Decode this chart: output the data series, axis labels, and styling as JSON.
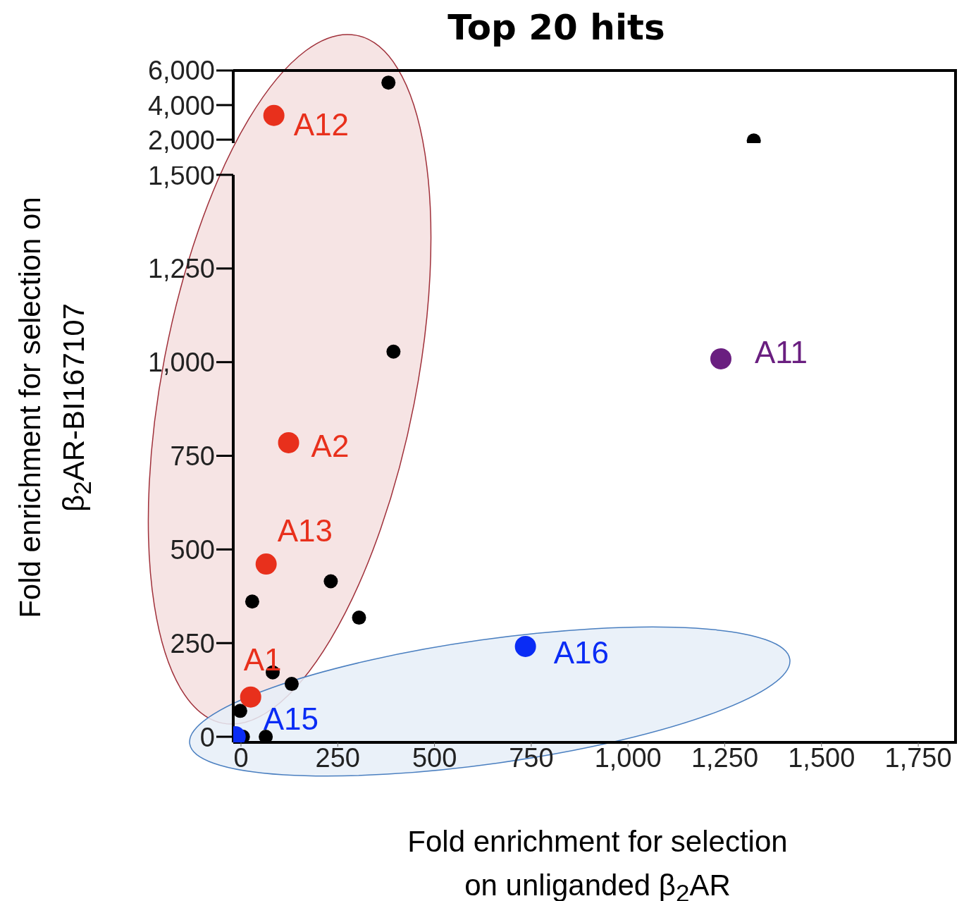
{
  "chart_data": [
    {
      "type": "scatter",
      "title": "Top 20 hits",
      "xlim": [
        -20,
        1850
      ],
      "ylim": [
        1800,
        6000
      ],
      "yticks": [
        {
          "value": 2000,
          "label": "2,000"
        },
        {
          "value": 4000,
          "label": "4,000"
        },
        {
          "value": 6000,
          "label": "6,000"
        }
      ],
      "tick_labels": "y",
      "marker": "circle",
      "grid": false,
      "legend": false,
      "series": [
        {
          "color": "#000000",
          "x": [
            381,
            1325
          ],
          "values": [
            5300,
            1950
          ]
        },
        {
          "color": "#e8301c",
          "x": [
            85
          ],
          "values": [
            3400
          ]
        }
      ],
      "annotations": [
        {
          "text": "A12",
          "x": 85,
          "y": 3400
        }
      ]
    },
    {
      "type": "scatter",
      "xlabel": "Fold enrichment for selection on unliganded β$_{2}$AR",
      "ylabel": "Fold enrichment for selection on β$_{2}$AR-BI167107",
      "xlim": [
        -20,
        1850
      ],
      "ylim": [
        -15,
        1500
      ],
      "xticks": [
        0,
        250,
        500,
        750,
        {
          "value": 1000,
          "label": "1,000"
        },
        {
          "value": 1250,
          "label": "1,250"
        },
        {
          "value": 1500,
          "label": "1,500"
        },
        {
          "value": 1750,
          "label": "1,750"
        }
      ],
      "yticks": [
        0,
        250,
        500,
        750,
        {
          "value": 1000,
          "label": "1,000"
        },
        {
          "value": 1250,
          "label": "1,250"
        },
        {
          "value": 1500,
          "label": "1,500"
        }
      ],
      "marker": "circle",
      "grid": false,
      "legend": false,
      "series": [
        {
          "color": "#000000",
          "x": [
            394,
            232,
            305,
            29,
            82,
            131,
            -2,
            5,
            64
          ],
          "values": [
            1028,
            415,
            318,
            361,
            172,
            141,
            69,
            0,
            0
          ]
        },
        {
          "color": "#e8301c",
          "x": [
            123,
            65,
            25
          ],
          "values": [
            785,
            461,
            106
          ]
        },
        {
          "color": "#0a2cf5",
          "x": [
            -15,
            735
          ],
          "values": [
            0,
            241
          ]
        },
        {
          "color": "#6a1f80",
          "x": [
            1240
          ],
          "values": [
            1009
          ]
        }
      ],
      "annotations": [
        {
          "text": "A2",
          "x": 123,
          "y": 785
        },
        {
          "text": "A13",
          "x": 65,
          "y": 461
        },
        {
          "text": "A1",
          "x": 25,
          "y": 106
        },
        {
          "text": "A15",
          "x": -15,
          "y": 0
        },
        {
          "text": "A16",
          "x": 735,
          "y": 241
        },
        {
          "text": "A11",
          "x": 1240,
          "y": 1009
        }
      ]
    }
  ]
}
